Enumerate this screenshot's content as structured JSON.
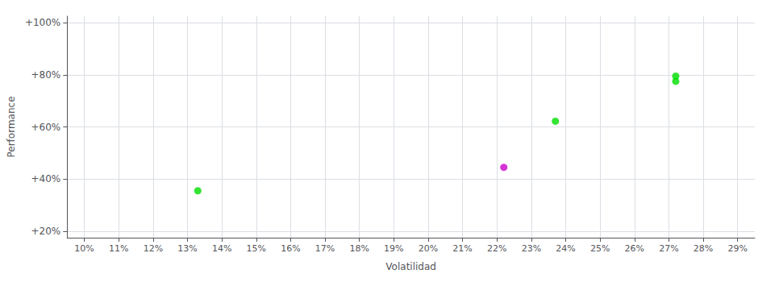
{
  "chart_data": {
    "type": "scatter",
    "xlabel": "Volatilidad",
    "ylabel": "Performance",
    "x": [
      0.133,
      0.222,
      0.237,
      0.272,
      0.272
    ],
    "values": [
      0.355,
      0.445,
      0.622,
      0.795,
      0.775
    ],
    "colors": [
      "#00dd00",
      "#cc00cc",
      "#00dd00",
      "#00dd00",
      "#00dd00"
    ],
    "xlim": [
      0.095,
      0.295
    ],
    "ylim": [
      0.175,
      1.025
    ],
    "xticks": [
      {
        "value": 0.1,
        "label": "10%"
      },
      {
        "value": 0.11,
        "label": "11%"
      },
      {
        "value": 0.12,
        "label": "12%"
      },
      {
        "value": 0.13,
        "label": "13%"
      },
      {
        "value": 0.14,
        "label": "14%"
      },
      {
        "value": 0.15,
        "label": "15%"
      },
      {
        "value": 0.16,
        "label": "16%"
      },
      {
        "value": 0.17,
        "label": "17%"
      },
      {
        "value": 0.18,
        "label": "18%"
      },
      {
        "value": 0.19,
        "label": "19%"
      },
      {
        "value": 0.2,
        "label": "20%"
      },
      {
        "value": 0.21,
        "label": "21%"
      },
      {
        "value": 0.22,
        "label": "22%"
      },
      {
        "value": 0.23,
        "label": "23%"
      },
      {
        "value": 0.24,
        "label": "24%"
      },
      {
        "value": 0.25,
        "label": "25%"
      },
      {
        "value": 0.26,
        "label": "26%"
      },
      {
        "value": 0.27,
        "label": "27%"
      },
      {
        "value": 0.28,
        "label": "28%"
      },
      {
        "value": 0.29,
        "label": "29%"
      }
    ],
    "yticks": [
      {
        "value": 0.2,
        "label": "+20%"
      },
      {
        "value": 0.4,
        "label": "+40%"
      },
      {
        "value": 0.6,
        "label": "+60%"
      },
      {
        "value": 0.8,
        "label": "+80%"
      },
      {
        "value": 1.0,
        "label": "+100%"
      }
    ],
    "grid": true
  }
}
